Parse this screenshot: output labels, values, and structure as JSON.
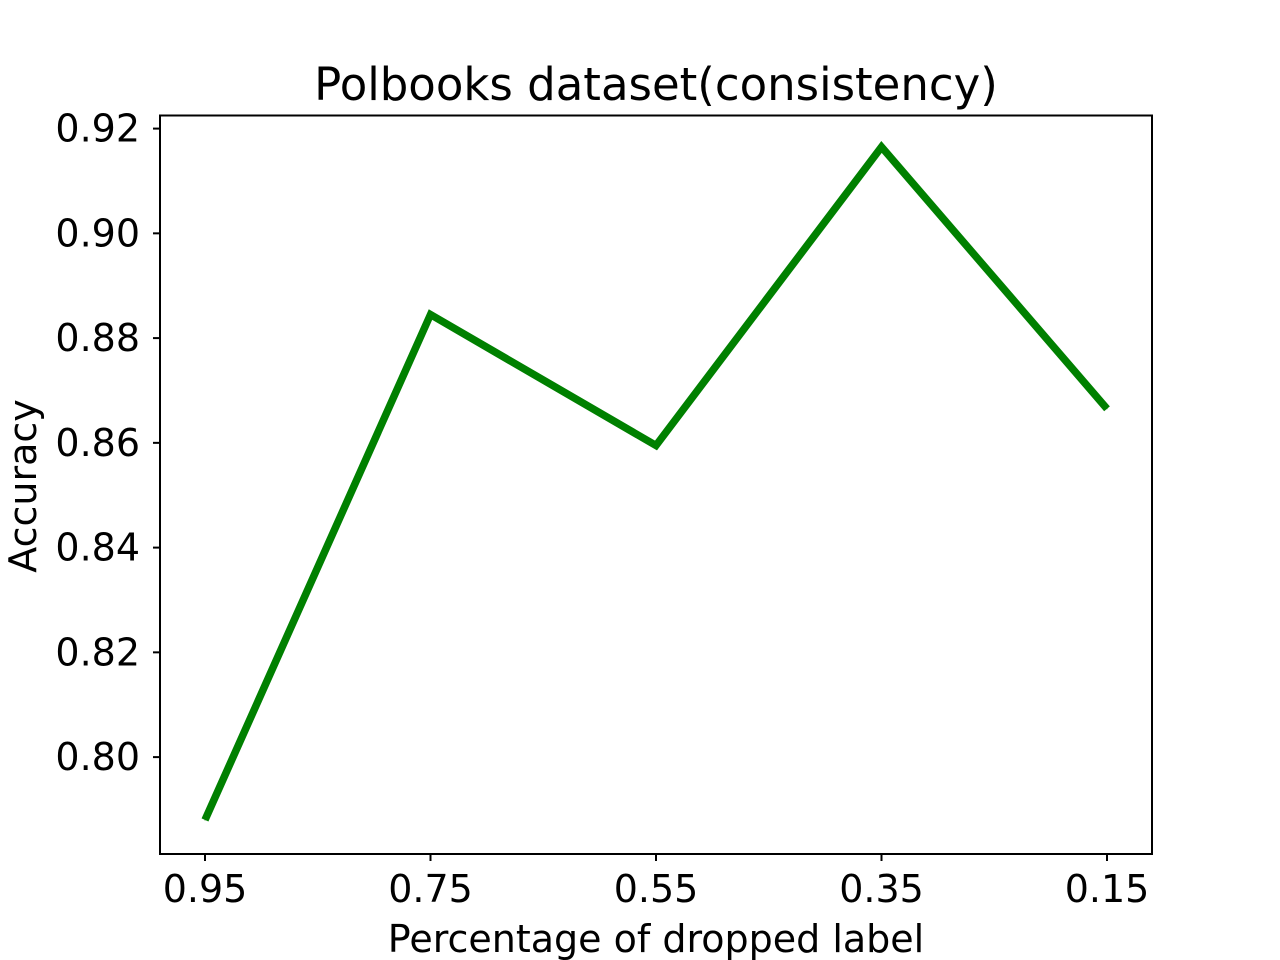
{
  "chart_data": {
    "type": "line",
    "title": "Polbooks dataset(consistency)",
    "xlabel": "Percentage of dropped label",
    "ylabel": "Accuracy",
    "categories": [
      "0.95",
      "0.75",
      "0.55",
      "0.35",
      "0.15"
    ],
    "series": [
      {
        "values": [
          0.788,
          0.8845,
          0.8595,
          0.9165,
          0.8665
        ],
        "color": "#008000"
      }
    ],
    "yticks": [
      "0.80",
      "0.82",
      "0.84",
      "0.86",
      "0.88",
      "0.90",
      "0.92"
    ],
    "ylim": [
      0.7815,
      0.9225
    ],
    "grid": false,
    "legend": "none"
  }
}
